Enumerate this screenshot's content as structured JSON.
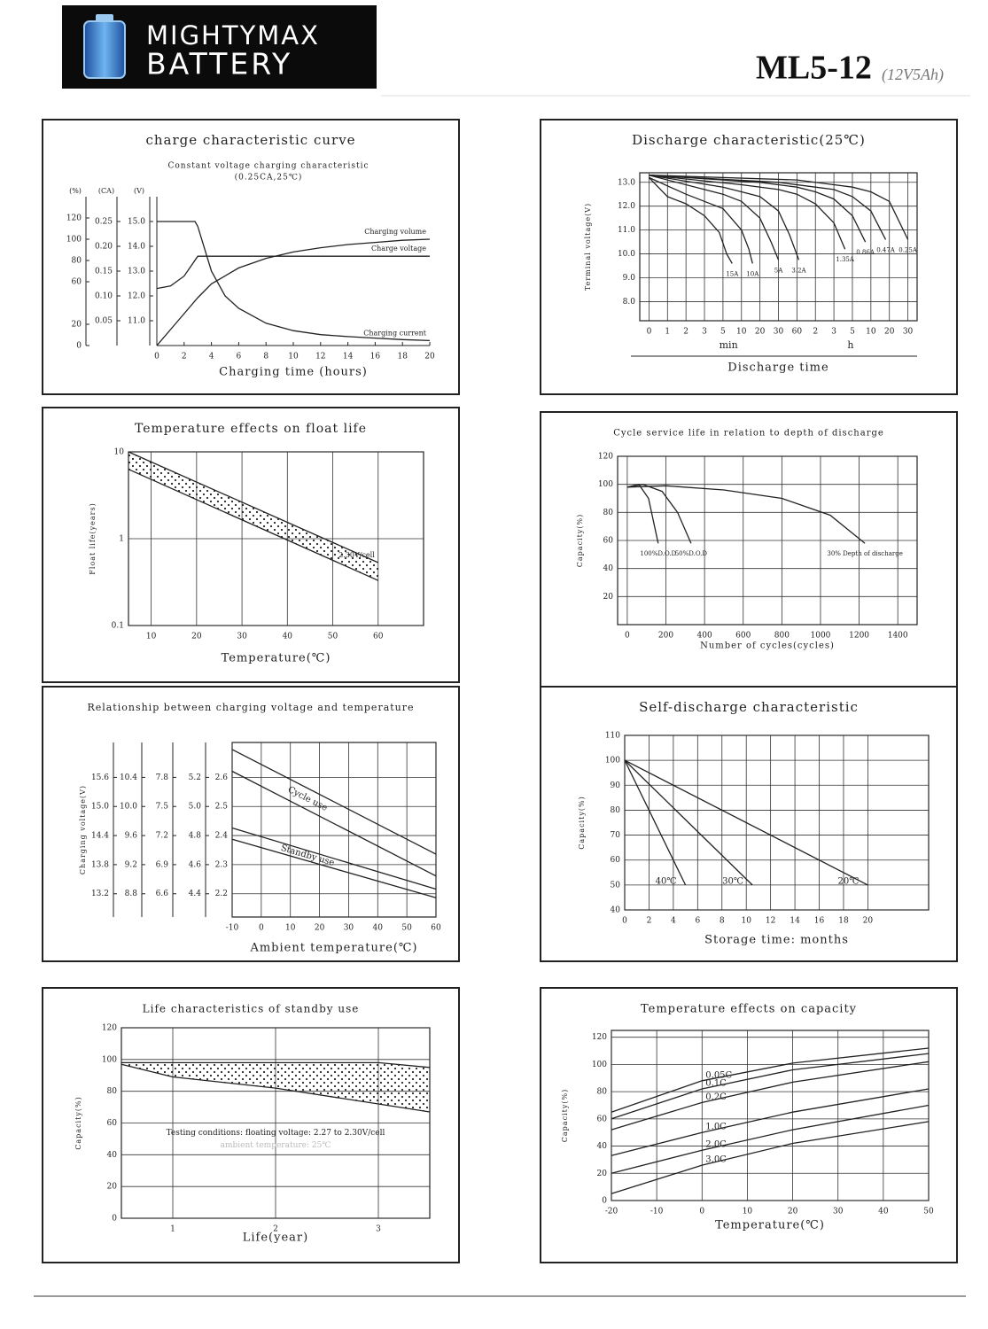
{
  "header": {
    "brand": "MIGHTYMAX",
    "brand2": "BATTERY",
    "model": "ML5-12",
    "model_sub": "(12V5Ah)"
  },
  "chart_data": [
    {
      "type": "line",
      "title": "charge characteristic curve",
      "subtitle": "Constant voltage charging characteristic",
      "subtitle2": "(0.25CA,25℃)",
      "xlabel": "Charging time (hours)",
      "ylabel": "(%)",
      "y2label": "(CA)",
      "y3label": "(V)",
      "grid": false,
      "color": "#222",
      "xlim": [
        0,
        20
      ],
      "xticks": [
        0,
        2,
        4,
        6,
        8,
        10,
        12,
        14,
        16,
        18,
        20
      ],
      "ylim": [
        0,
        140
      ],
      "yticks": [
        0,
        20,
        60,
        80,
        100,
        120
      ],
      "y2lim": [
        0,
        0.3
      ],
      "y2ticks": [
        0.05,
        {
          "value": 0.1,
          "label": "0.10"
        },
        0.15,
        {
          "value": 0.2,
          "label": "0.20"
        },
        0.25
      ],
      "y3lim": [
        10,
        16
      ],
      "y3ticks": [
        {
          "value": 11,
          "label": "11.0"
        },
        {
          "value": 12,
          "label": "12.0"
        },
        {
          "value": 13,
          "label": "13.0"
        },
        {
          "value": 14,
          "label": "14.0"
        },
        {
          "value": 15,
          "label": "15.0"
        }
      ],
      "series": [
        {
          "name": "Charging volume",
          "x": [
            0,
            1,
            2,
            3,
            4,
            6,
            8,
            10,
            12,
            14,
            16,
            18,
            20
          ],
          "values": [
            0,
            15,
            30,
            45,
            58,
            73,
            82,
            88,
            92,
            95,
            97,
            99,
            100
          ]
        },
        {
          "name": "Charge voltage",
          "axis": "y3",
          "x": [
            0,
            1,
            2,
            3,
            4,
            20
          ],
          "values": [
            12.3,
            12.4,
            12.8,
            13.6,
            13.6,
            13.6
          ]
        },
        {
          "name": "Charging current",
          "axis": "y2",
          "x": [
            0,
            2.8,
            3,
            4,
            5,
            6,
            8,
            10,
            12,
            14,
            16,
            18,
            20
          ],
          "values": [
            0.25,
            0.25,
            0.24,
            0.15,
            0.1,
            0.075,
            0.045,
            0.03,
            0.022,
            0.018,
            0.015,
            0.012,
            0.01
          ]
        }
      ]
    },
    {
      "type": "line",
      "title": "Discharge characteristic(25℃)",
      "xlabel": "Discharge time",
      "x_units": [
        "min",
        "h"
      ],
      "ylabel": "Terminal voltage(V)",
      "grid": true,
      "color": "#222",
      "xlim": [
        -0.5,
        14.5
      ],
      "xticks": [
        0,
        1,
        2,
        3,
        {
          "value": 4,
          "label": "5"
        },
        {
          "value": 5,
          "label": "10"
        },
        {
          "value": 6,
          "label": "20"
        },
        {
          "value": 7,
          "label": "30"
        },
        {
          "value": 8,
          "label": "60"
        },
        {
          "value": 9,
          "label": "2"
        },
        {
          "value": 10,
          "label": "3"
        },
        {
          "value": 11,
          "label": "5"
        },
        {
          "value": 12,
          "label": "10"
        },
        {
          "value": 13,
          "label": "20"
        },
        {
          "value": 14,
          "label": "30"
        }
      ],
      "ylim": [
        7.2,
        13.4
      ],
      "yticks": [
        {
          "value": 8,
          "label": "8.0"
        },
        {
          "value": 9,
          "label": "9.0"
        },
        {
          "value": 10,
          "label": "10.0"
        },
        {
          "value": 11,
          "label": "11.0"
        },
        {
          "value": 12,
          "label": "12.0"
        },
        {
          "value": 13,
          "label": "13.0"
        }
      ],
      "series": [
        {
          "name": "15A",
          "x": [
            0,
            1,
            2,
            3,
            3.8,
            4.2,
            4.5
          ],
          "values": [
            13.2,
            12.4,
            12.1,
            11.6,
            10.9,
            10.0,
            9.6
          ]
        },
        {
          "name": "10A",
          "x": [
            0,
            2,
            3,
            4,
            5,
            5.4,
            5.6
          ],
          "values": [
            13.2,
            12.5,
            12.2,
            11.9,
            11.0,
            10.2,
            9.6
          ]
        },
        {
          "name": "5A",
          "x": [
            0,
            3,
            4,
            5,
            6,
            6.6,
            7
          ],
          "values": [
            13.3,
            12.7,
            12.5,
            12.2,
            11.5,
            10.5,
            9.75
          ]
        },
        {
          "name": "3.2A",
          "x": [
            0,
            4,
            5,
            6,
            7,
            7.6,
            8.1
          ],
          "values": [
            13.3,
            12.8,
            12.6,
            12.4,
            11.8,
            10.8,
            9.75
          ]
        },
        {
          "name": "1.35A",
          "x": [
            0,
            5,
            7,
            8,
            9,
            10,
            10.6
          ],
          "values": [
            13.3,
            12.9,
            12.7,
            12.5,
            12.1,
            11.3,
            10.2
          ]
        },
        {
          "name": "0.86A",
          "x": [
            0,
            6,
            8,
            9,
            10,
            11,
            11.7
          ],
          "values": [
            13.3,
            13.0,
            12.8,
            12.6,
            12.3,
            11.6,
            10.5
          ]
        },
        {
          "name": "0.47A",
          "x": [
            0,
            7,
            9,
            10,
            11,
            12,
            12.8
          ],
          "values": [
            13.3,
            13.0,
            12.8,
            12.7,
            12.4,
            11.8,
            10.6
          ]
        },
        {
          "name": "0.25A",
          "x": [
            0,
            8,
            10,
            11,
            12,
            13,
            14
          ],
          "values": [
            13.3,
            13.1,
            12.9,
            12.8,
            12.6,
            12.2,
            10.6
          ]
        }
      ]
    },
    {
      "type": "line",
      "title": "Temperature effects on float life",
      "xlabel": "Temperature(℃)",
      "ylabel": "Float life(years)",
      "grid": true,
      "color": "#222",
      "yscale": "log",
      "xlim": [
        5,
        70
      ],
      "xticks": [
        10,
        20,
        30,
        40,
        50,
        60
      ],
      "ylim": [
        0.1,
        10
      ],
      "yticks": [
        0.1,
        1,
        10
      ],
      "series": [
        {
          "name": "2.30V/cell",
          "x": [
            5,
            60
          ],
          "values": [
            10,
            0.53
          ],
          "lower": [
            6.3,
            0.33
          ],
          "fill": "dots"
        }
      ]
    },
    {
      "type": "line",
      "title": "Cycle service life in relation to depth of discharge",
      "xlabel": "Number of cycles(cycles)",
      "ylabel": "Capacity(%)",
      "grid": true,
      "color": "#222",
      "xlim": [
        -50,
        1500
      ],
      "xticks": [
        0,
        200,
        400,
        600,
        800,
        1000,
        1200,
        1400
      ],
      "ylim": [
        0,
        120
      ],
      "yticks": [
        20,
        40,
        60,
        80,
        100,
        120
      ],
      "series": [
        {
          "name": "100%D.O.D",
          "x": [
            0,
            60,
            110,
            160
          ],
          "values": [
            98,
            100,
            90,
            58
          ]
        },
        {
          "name": "50%D.O.D",
          "x": [
            0,
            80,
            180,
            260,
            330
          ],
          "values": [
            98,
            100,
            95,
            80,
            58
          ]
        },
        {
          "name": "30% Depth of discharge",
          "x": [
            0,
            200,
            500,
            800,
            1050,
            1230
          ],
          "values": [
            98,
            99,
            96,
            90,
            78,
            58
          ]
        }
      ]
    },
    {
      "type": "line",
      "title": "Relationship between charging voltage and temperature",
      "xlabel": "Ambient temperature(℃)",
      "ylabel": "Charging voltage(V)",
      "grid": true,
      "color": "#222",
      "xlim": [
        -10,
        60
      ],
      "xticks": [
        -10,
        0,
        10,
        20,
        30,
        40,
        50,
        60
      ],
      "ylim": [
        2.12,
        2.72
      ],
      "yticks": [
        2.2,
        2.3,
        2.4,
        2.5,
        2.6
      ],
      "y_axes": [
        {
          "ylim": [
            12.72,
            16.32
          ],
          "yticks": [
            13.2,
            13.8,
            14.4,
            {
              "value": 15,
              "label": "15.0"
            },
            15.6
          ]
        },
        {
          "ylim": [
            8.48,
            10.88
          ],
          "yticks": [
            8.8,
            9.2,
            9.6,
            {
              "value": 10,
              "label": "10.0"
            },
            10.4
          ]
        },
        {
          "ylim": [
            6.36,
            8.16
          ],
          "yticks": [
            6.6,
            6.9,
            7.2,
            7.5,
            7.8
          ]
        },
        {
          "ylim": [
            4.24,
            5.44
          ],
          "yticks": [
            4.4,
            4.6,
            4.8,
            {
              "value": 5,
              "label": "5.0"
            },
            5.2
          ]
        }
      ],
      "series": [
        {
          "name": "Cycle use",
          "x": [
            -10,
            60
          ],
          "values": [
            2.696,
            2.336
          ],
          "lower": [
            2.621,
            2.261
          ]
        },
        {
          "name": "Standby use",
          "x": [
            -10,
            60
          ],
          "values": [
            2.426,
            2.216
          ],
          "lower": [
            2.387,
            2.186
          ]
        }
      ]
    },
    {
      "type": "line",
      "title": "Self-discharge characteristic",
      "xlabel": "Storage time: months",
      "ylabel": "Capacity(%)",
      "grid": true,
      "color": "#222",
      "xlim": [
        0,
        25
      ],
      "xticks": [
        0,
        2,
        4,
        6,
        8,
        10,
        12,
        14,
        16,
        18,
        20
      ],
      "ylim": [
        40,
        110
      ],
      "yticks": [
        40,
        50,
        60,
        70,
        80,
        90,
        100,
        110
      ],
      "series": [
        {
          "name": "40℃",
          "x": [
            0,
            5
          ],
          "values": [
            100,
            50
          ]
        },
        {
          "name": "30℃",
          "x": [
            0,
            10.5
          ],
          "values": [
            100,
            50
          ]
        },
        {
          "name": "20℃",
          "x": [
            0,
            20
          ],
          "values": [
            100,
            50
          ]
        }
      ]
    },
    {
      "type": "line",
      "title": "Life characteristics of standby use",
      "xlabel": "Life(year)",
      "ylabel": "Capacity(%)",
      "grid": true,
      "color": "#222",
      "xlim": [
        0.5,
        3.5
      ],
      "xticks": [
        1,
        2,
        3
      ],
      "ylim": [
        0,
        120
      ],
      "yticks": [
        0,
        20,
        40,
        60,
        80,
        100,
        120
      ],
      "notes": [
        "Testing conditions: floating voltage: 2.27 to 2.30V/cell",
        "ambient temperature: 25℃"
      ],
      "series": [
        {
          "x": [
            0.5,
            1,
            2,
            3,
            3.5
          ],
          "values": [
            98,
            98,
            98,
            98,
            95
          ],
          "lower": [
            97,
            89,
            82,
            72,
            67
          ],
          "fill": "dots"
        }
      ]
    },
    {
      "type": "line",
      "title": "Temperature effects on capacity",
      "xlabel": "Temperature(℃)",
      "ylabel": "Capacity(%)",
      "grid": true,
      "color": "#222",
      "xlim": [
        -20,
        50
      ],
      "xticks": [
        -20,
        -10,
        0,
        10,
        20,
        30,
        40,
        50
      ],
      "ylim": [
        0,
        125
      ],
      "yticks": [
        0,
        20,
        40,
        60,
        80,
        100,
        120
      ],
      "series": [
        {
          "name": "0.05C",
          "x": [
            -20,
            0,
            20,
            50
          ],
          "values": [
            65,
            88,
            101,
            112
          ]
        },
        {
          "name": "0.1C",
          "x": [
            -20,
            0,
            20,
            50
          ],
          "values": [
            60,
            82,
            96,
            108
          ]
        },
        {
          "name": "0.2C",
          "x": [
            -20,
            0,
            20,
            50
          ],
          "values": [
            52,
            72,
            87,
            102
          ]
        },
        {
          "name": "1.0C",
          "x": [
            -20,
            0,
            20,
            50
          ],
          "values": [
            33,
            50,
            65,
            82
          ]
        },
        {
          "name": "2.0C",
          "x": [
            -20,
            0,
            20,
            50
          ],
          "values": [
            20,
            37,
            52,
            70
          ]
        },
        {
          "name": "3.0C",
          "x": [
            -20,
            0,
            20,
            50
          ],
          "values": [
            5,
            26,
            42,
            58
          ]
        }
      ]
    }
  ]
}
